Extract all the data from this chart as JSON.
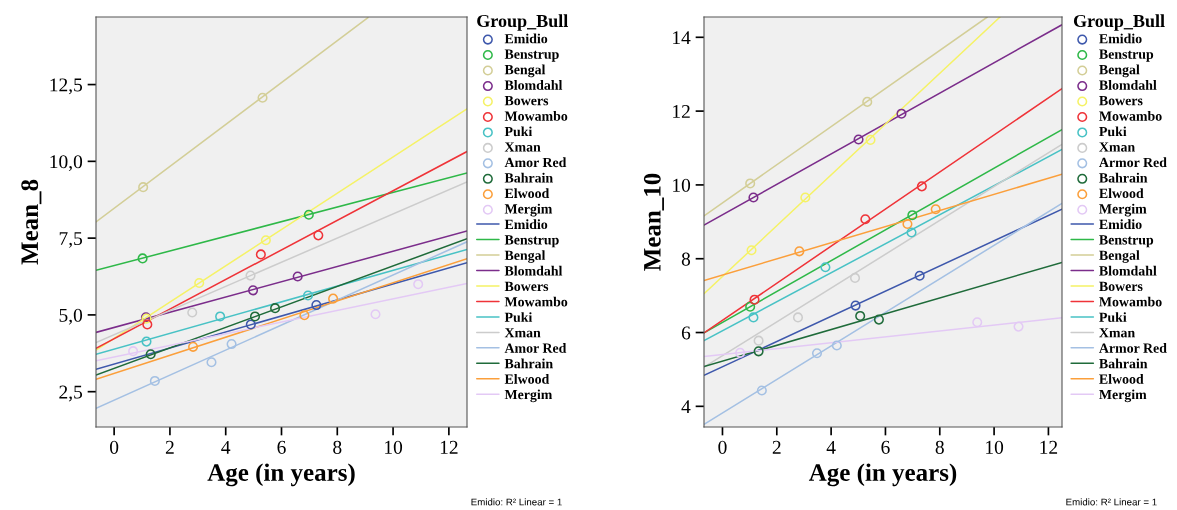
{
  "chart_data": [
    {
      "type": "scatter",
      "xlabel": "Age (in years)",
      "ylabel": "Mean_8",
      "legend_title": "Group_Bull",
      "legend": "right",
      "grid": false,
      "xlim": [
        -0.65,
        12.65
      ],
      "xticks": [
        0,
        2,
        4,
        6,
        8,
        10,
        12
      ],
      "ylim": [
        1.35,
        14.7
      ],
      "yticks": [
        {
          "value": 2.5,
          "label": "2,5"
        },
        {
          "value": 5.0,
          "label": "5,0"
        },
        {
          "value": 7.5,
          "label": "7,5"
        },
        {
          "value": 10.0,
          "label": "10,0"
        },
        {
          "value": 12.5,
          "label": "12,5"
        }
      ],
      "annotations": [
        "Emidio: R² Linear = 1"
      ],
      "series": [
        {
          "marker": "circle",
          "name": "Emidio",
          "color": "#3e58ac",
          "x": [
            4.9,
            7.25
          ],
          "values": [
            4.69,
            5.32
          ]
        },
        {
          "marker": "circle",
          "name": "Benstrup",
          "color": "#2eb848",
          "x": [
            1.02,
            6.98
          ],
          "values": [
            6.84,
            8.26
          ]
        },
        {
          "marker": "circle",
          "name": "Bengal",
          "color": "#d3ce97",
          "x": [
            1.04,
            5.32
          ],
          "values": [
            9.16,
            12.07
          ]
        },
        {
          "marker": "circle",
          "name": "Blomdahl",
          "color": "#7b2d8b",
          "x": [
            1.14,
            4.98,
            6.58
          ],
          "values": [
            4.92,
            5.8,
            6.25
          ]
        },
        {
          "marker": "circle",
          "name": "Bowers",
          "color": "#f5f266",
          "x": [
            1.16,
            3.05,
            5.44
          ],
          "values": [
            4.88,
            6.04,
            7.43
          ]
        },
        {
          "marker": "circle",
          "name": "Mowambo",
          "color": "#ef3338",
          "x": [
            1.19,
            5.26,
            7.32
          ],
          "values": [
            4.69,
            6.97,
            7.59
          ]
        },
        {
          "marker": "circle",
          "name": "Puki",
          "color": "#48c2c5",
          "x": [
            1.16,
            3.8,
            6.95
          ],
          "values": [
            4.13,
            4.95,
            5.63
          ]
        },
        {
          "marker": "circle",
          "name": "Xman",
          "color": "#cccccc",
          "x": [
            2.8,
            4.89
          ],
          "values": [
            5.08,
            6.28
          ]
        },
        {
          "marker": "circle",
          "name": "Amor Red",
          "color": "#a4c0e3",
          "x": [
            1.46,
            3.49,
            4.21
          ],
          "values": [
            2.85,
            3.46,
            4.05
          ]
        },
        {
          "marker": "circle",
          "name": "Bahrain",
          "color": "#1f6b3a",
          "x": [
            1.31,
            5.05,
            5.77
          ],
          "values": [
            3.72,
            4.95,
            5.22
          ]
        },
        {
          "marker": "circle",
          "name": "Elwood",
          "color": "#fb9f3b",
          "x": [
            2.83,
            6.82,
            7.85
          ],
          "values": [
            3.96,
            4.99,
            5.53
          ]
        },
        {
          "marker": "circle",
          "name": "Mergim",
          "color": "#e3c9f5",
          "x": [
            0.68,
            9.37,
            10.9
          ],
          "values": [
            3.82,
            5.02,
            6.0
          ]
        },
        {
          "type": "line",
          "name": "Emidio",
          "color": "#3e58ac",
          "x": [
            -0.65,
            12.65
          ],
          "values": [
            3.23,
            6.7
          ]
        },
        {
          "type": "line",
          "name": "Benstrup",
          "color": "#2eb848",
          "x": [
            -0.65,
            12.65
          ],
          "values": [
            6.45,
            9.62
          ]
        },
        {
          "type": "line",
          "name": "Bengal",
          "color": "#d3ce97",
          "x": [
            -0.65,
            9.1
          ],
          "values": [
            8.03,
            14.68
          ]
        },
        {
          "type": "line",
          "name": "Blomdahl",
          "color": "#7b2d8b",
          "x": [
            -0.65,
            12.65
          ],
          "values": [
            4.43,
            7.73
          ]
        },
        {
          "type": "line",
          "name": "Bowers",
          "color": "#f5f266",
          "x": [
            -0.65,
            12.65
          ],
          "values": [
            3.85,
            11.71
          ]
        },
        {
          "type": "line",
          "name": "Mowambo",
          "color": "#ef3338",
          "x": [
            -0.65,
            12.65
          ],
          "values": [
            3.91,
            10.32
          ]
        },
        {
          "type": "line",
          "name": "Puki",
          "color": "#48c2c5",
          "x": [
            -0.65,
            12.65
          ],
          "values": [
            3.72,
            7.13
          ]
        },
        {
          "type": "line",
          "name": "Xman",
          "color": "#cccccc",
          "x": [
            -0.65,
            12.65
          ],
          "values": [
            4.1,
            9.33
          ]
        },
        {
          "type": "line",
          "name": "Amor Red",
          "color": "#a4c0e3",
          "x": [
            -0.65,
            12.65
          ],
          "values": [
            1.96,
            7.38
          ]
        },
        {
          "type": "line",
          "name": "Bahrain",
          "color": "#1f6b3a",
          "x": [
            -0.65,
            12.65
          ],
          "values": [
            3.04,
            7.48
          ]
        },
        {
          "type": "line",
          "name": "Elwood",
          "color": "#fb9f3b",
          "x": [
            -0.65,
            12.65
          ],
          "values": [
            2.9,
            6.83
          ]
        },
        {
          "type": "line",
          "name": "Mergim",
          "color": "#e3c9f5",
          "x": [
            -0.65,
            12.65
          ],
          "values": [
            3.51,
            6.02
          ]
        }
      ]
    },
    {
      "type": "scatter",
      "xlabel": "Age (in years)",
      "ylabel": "Mean_10",
      "legend_title": "Group_Bull",
      "legend": "right",
      "grid": false,
      "xlim": [
        -0.68,
        12.5
      ],
      "xticks": [
        0,
        2,
        4,
        6,
        8,
        10,
        12
      ],
      "ylim": [
        3.44,
        14.55
      ],
      "yticks": [
        4,
        6,
        8,
        10,
        12,
        14
      ],
      "annotations": [
        "Emidio: R² Linear = 1"
      ],
      "series": [
        {
          "marker": "circle",
          "name": "Emidio",
          "color": "#3e58ac",
          "x": [
            4.9,
            7.26
          ],
          "values": [
            6.73,
            7.54
          ]
        },
        {
          "marker": "circle",
          "name": "Benstrup",
          "color": "#2eb848",
          "x": [
            1.02,
            6.99
          ],
          "values": [
            6.7,
            9.18
          ]
        },
        {
          "marker": "circle",
          "name": "Bengal",
          "color": "#d3ce97",
          "x": [
            1.02,
            5.33
          ],
          "values": [
            10.04,
            12.25
          ]
        },
        {
          "marker": "circle",
          "name": "Blomdahl",
          "color": "#7b2d8b",
          "x": [
            1.14,
            5.01,
            6.59
          ],
          "values": [
            9.66,
            11.23,
            11.93
          ]
        },
        {
          "marker": "circle",
          "name": "Bowers",
          "color": "#f5f266",
          "x": [
            1.07,
            3.05,
            5.45
          ],
          "values": [
            8.23,
            9.66,
            11.22
          ]
        },
        {
          "marker": "circle",
          "name": "Mowambo",
          "color": "#ef3338",
          "x": [
            1.18,
            5.26,
            7.34
          ],
          "values": [
            6.89,
            9.07,
            9.96
          ]
        },
        {
          "marker": "circle",
          "name": "Puki",
          "color": "#48c2c5",
          "x": [
            1.14,
            3.79,
            6.96
          ],
          "values": [
            6.41,
            7.77,
            8.71
          ]
        },
        {
          "marker": "circle",
          "name": "Xman",
          "color": "#cccccc",
          "x": [
            1.33,
            2.78,
            4.88
          ],
          "values": [
            5.78,
            6.41,
            7.48
          ]
        },
        {
          "marker": "circle",
          "name": "Armor Red",
          "color": "#a4c0e3",
          "x": [
            1.45,
            3.48,
            4.21
          ],
          "values": [
            4.43,
            5.44,
            5.65
          ]
        },
        {
          "marker": "circle",
          "name": "Bahrain",
          "color": "#1f6b3a",
          "x": [
            1.33,
            5.07,
            5.76
          ],
          "values": [
            5.49,
            6.45,
            6.35
          ]
        },
        {
          "marker": "circle",
          "name": "Elwood",
          "color": "#fb9f3b",
          "x": [
            2.83,
            6.81,
            7.85
          ],
          "values": [
            8.2,
            8.94,
            9.34
          ]
        },
        {
          "marker": "circle",
          "name": "Mergim",
          "color": "#e3c9f5",
          "x": [
            0.65,
            9.38,
            10.9
          ],
          "values": [
            5.45,
            6.28,
            6.16
          ]
        },
        {
          "type": "line",
          "name": "Emidio",
          "color": "#3e58ac",
          "x": [
            -0.68,
            12.5
          ],
          "values": [
            4.84,
            9.34
          ]
        },
        {
          "type": "line",
          "name": "Benstrup",
          "color": "#2eb848",
          "x": [
            -0.68,
            12.5
          ],
          "values": [
            5.99,
            11.5
          ]
        },
        {
          "type": "line",
          "name": "Bengal",
          "color": "#d3ce97",
          "x": [
            -0.68,
            9.75
          ],
          "values": [
            9.16,
            14.55
          ]
        },
        {
          "type": "line",
          "name": "Blomdahl",
          "color": "#7b2d8b",
          "x": [
            -0.68,
            12.5
          ],
          "values": [
            8.91,
            14.34
          ]
        },
        {
          "type": "line",
          "name": "Bowers",
          "color": "#f5f266",
          "x": [
            -0.68,
            10.22
          ],
          "values": [
            7.05,
            14.55
          ]
        },
        {
          "type": "line",
          "name": "Mowambo",
          "color": "#ef3338",
          "x": [
            -0.68,
            12.5
          ],
          "values": [
            5.99,
            12.61
          ]
        },
        {
          "type": "line",
          "name": "Puki",
          "color": "#48c2c5",
          "x": [
            -0.68,
            12.5
          ],
          "values": [
            5.78,
            10.96
          ]
        },
        {
          "type": "line",
          "name": "Xman",
          "color": "#cccccc",
          "x": [
            -0.68,
            12.5
          ],
          "values": [
            5.06,
            11.1
          ]
        },
        {
          "type": "line",
          "name": "Armor Red",
          "color": "#a4c0e3",
          "x": [
            -0.68,
            12.5
          ],
          "values": [
            3.51,
            9.5
          ]
        },
        {
          "type": "line",
          "name": "Bahrain",
          "color": "#1f6b3a",
          "x": [
            -0.68,
            12.5
          ],
          "values": [
            5.08,
            7.9
          ]
        },
        {
          "type": "line",
          "name": "Elwood",
          "color": "#fb9f3b",
          "x": [
            -0.68,
            12.5
          ],
          "values": [
            7.41,
            10.29
          ]
        },
        {
          "type": "line",
          "name": "Mergim",
          "color": "#e3c9f5",
          "x": [
            -0.68,
            12.5
          ],
          "values": [
            5.35,
            6.4
          ]
        }
      ]
    }
  ]
}
